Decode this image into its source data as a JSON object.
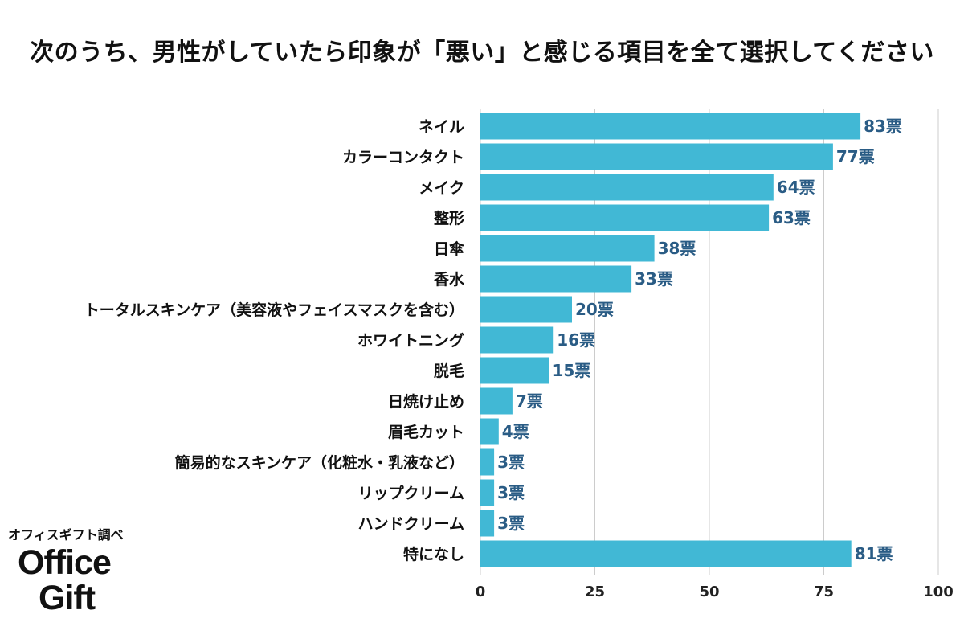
{
  "title": "次のうち、男性がしていたら印象が「悪い」と感じる項目を全て選択してください",
  "source": "オフィスギフト調べ",
  "logo": {
    "line1": "Office",
    "line2": "Gift"
  },
  "colors": {
    "bar": "#41b8d5",
    "value_label": "#2a5c85",
    "grid": "#cccccc"
  },
  "chart_data": {
    "type": "bar",
    "orientation": "horizontal",
    "categories": [
      "ネイル",
      "カラーコンタクト",
      "メイク",
      "整形",
      "日傘",
      "香水",
      "トータルスキンケア（美容液やフェイスマスクを含む）",
      "ホワイトニング",
      "脱毛",
      "日焼け止め",
      "眉毛カット",
      "簡易的なスキンケア（化粧水・乳液など）",
      "リップクリーム",
      "ハンドクリーム",
      "特になし"
    ],
    "values": [
      83,
      77,
      64,
      63,
      38,
      33,
      20,
      16,
      15,
      7,
      4,
      3,
      3,
      3,
      81
    ],
    "value_suffix": "票",
    "xlim": [
      0,
      100
    ],
    "xticks": [
      0,
      25,
      50,
      75,
      100
    ],
    "grid": true,
    "legend": "none"
  }
}
